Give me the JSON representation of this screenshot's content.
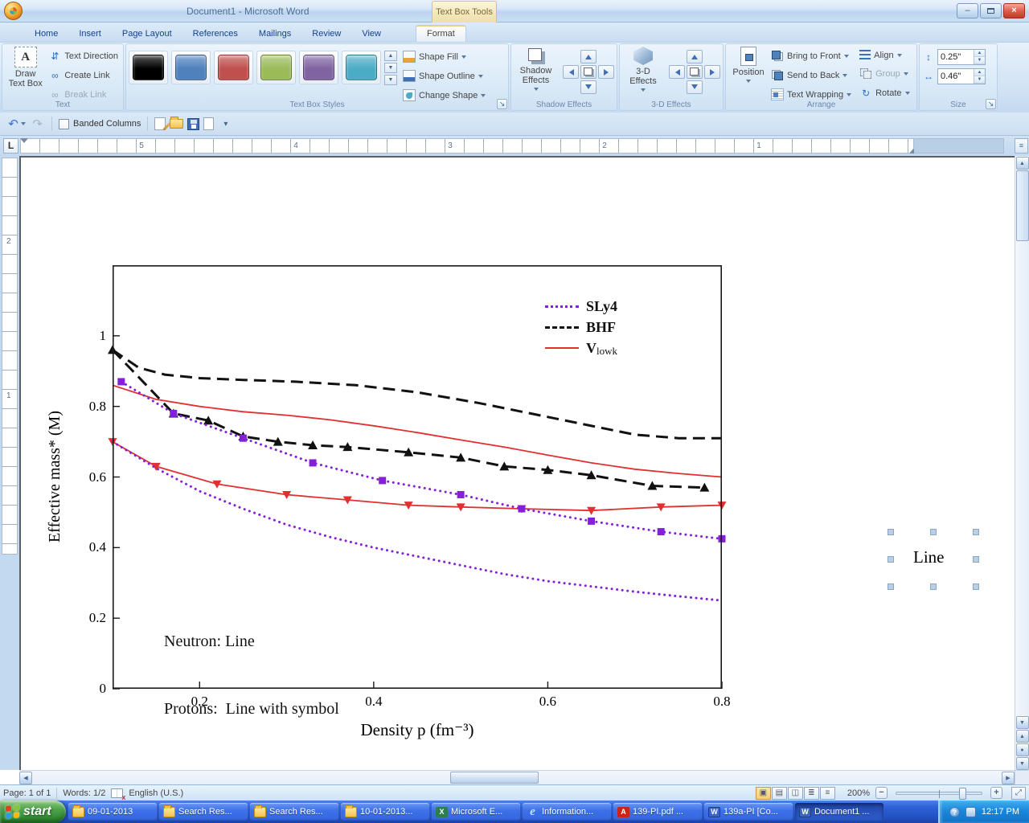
{
  "window": {
    "title": "Document1 - Microsoft Word",
    "contextual_group": "Text Box Tools"
  },
  "ribbon": {
    "tabs": [
      "Home",
      "Insert",
      "Page Layout",
      "References",
      "Mailings",
      "Review",
      "View",
      "Format"
    ],
    "active_tab": "Format",
    "text_group": {
      "label": "Text",
      "draw_text_box": "Draw Text Box",
      "text_direction": "Text Direction",
      "create_link": "Create Link",
      "break_link": "Break Link"
    },
    "styles_group": {
      "label": "Text Box Styles",
      "swatches": [
        "#000000",
        "#4f81bd",
        "#c0504d",
        "#9bbb59",
        "#8064a2",
        "#4bacc6"
      ],
      "shape_fill": "Shape Fill",
      "shape_outline": "Shape Outline",
      "change_shape": "Change Shape"
    },
    "shadow_group": {
      "label": "Shadow Effects",
      "button": "Shadow Effects"
    },
    "threed_group": {
      "label": "3-D Effects",
      "button": "3-D Effects"
    },
    "arrange_group": {
      "label": "Arrange",
      "position": "Position",
      "bring_to_front": "Bring to Front",
      "send_to_back": "Send to Back",
      "text_wrapping": "Text Wrapping",
      "align": "Align",
      "group": "Group",
      "rotate": "Rotate"
    },
    "size_group": {
      "label": "Size",
      "height": "0.25\"",
      "width": "0.46\""
    }
  },
  "quick_access": {
    "banded_columns": "Banded Columns"
  },
  "rulers": {
    "horizontal": [
      "5",
      "4",
      "3",
      "2",
      "1"
    ],
    "vertical": [
      "2",
      "1"
    ]
  },
  "document": {
    "textbox_text": "Line",
    "chart_data": {
      "type": "line",
      "title": "",
      "xlabel": "Density p (fm⁻³)",
      "ylabel": "Effective mass* (M)",
      "xlim": [
        0.1,
        0.8
      ],
      "ylim": [
        0,
        1.2
      ],
      "xticks": [
        0.2,
        0.4,
        0.6,
        0.8
      ],
      "yticks": [
        0,
        0.2,
        0.4,
        0.6,
        0.8,
        1
      ],
      "grid": false,
      "legend_position": "upper right",
      "annotations": [
        "Neutron: Line",
        "Protons:  Line with symbol"
      ],
      "legend": [
        {
          "label": "SLy4",
          "sub": "",
          "color": "#8420d8",
          "style": "dotted"
        },
        {
          "label": "BHF",
          "sub": "",
          "color": "#111111",
          "style": "dashed"
        },
        {
          "label": "V",
          "sub": "lowk",
          "color": "#e03030",
          "style": "solid"
        }
      ],
      "series": [
        {
          "name": "BHF neutron",
          "color": "#111111",
          "style": "dashed",
          "marker": "none",
          "width": 3,
          "x": [
            0.1,
            0.13,
            0.16,
            0.2,
            0.25,
            0.31,
            0.38,
            0.45,
            0.52,
            0.58,
            0.64,
            0.7,
            0.75,
            0.8
          ],
          "y": [
            0.96,
            0.91,
            0.89,
            0.88,
            0.875,
            0.87,
            0.86,
            0.84,
            0.81,
            0.78,
            0.75,
            0.72,
            0.71,
            0.71
          ]
        },
        {
          "name": "BHF protons",
          "color": "#111111",
          "style": "dashed",
          "marker": "triangle-up",
          "width": 3,
          "x": [
            0.1,
            0.17,
            0.21,
            0.25,
            0.29,
            0.33,
            0.37,
            0.44,
            0.5,
            0.55,
            0.6,
            0.65,
            0.72,
            0.78
          ],
          "y": [
            0.96,
            0.78,
            0.76,
            0.715,
            0.7,
            0.69,
            0.685,
            0.67,
            0.655,
            0.63,
            0.62,
            0.605,
            0.575,
            0.57
          ]
        },
        {
          "name": "Vlowk neutron",
          "color": "#e03030",
          "style": "solid",
          "marker": "none",
          "width": 1.8,
          "x": [
            0.1,
            0.15,
            0.2,
            0.25,
            0.3,
            0.35,
            0.4,
            0.45,
            0.5,
            0.55,
            0.6,
            0.65,
            0.7,
            0.75,
            0.8
          ],
          "y": [
            0.86,
            0.82,
            0.8,
            0.785,
            0.775,
            0.762,
            0.745,
            0.726,
            0.705,
            0.685,
            0.662,
            0.64,
            0.622,
            0.61,
            0.6
          ]
        },
        {
          "name": "Vlowk protons",
          "color": "#e03030",
          "style": "solid",
          "marker": "triangle-down",
          "width": 1.8,
          "x": [
            0.1,
            0.15,
            0.22,
            0.3,
            0.37,
            0.44,
            0.5,
            0.57,
            0.65,
            0.73,
            0.8
          ],
          "y": [
            0.7,
            0.63,
            0.58,
            0.55,
            0.535,
            0.52,
            0.515,
            0.51,
            0.505,
            0.515,
            0.52
          ]
        },
        {
          "name": "SLy4 neutron",
          "color": "#8420d8",
          "style": "dotted",
          "marker": "none",
          "width": 3,
          "x": [
            0.1,
            0.15,
            0.2,
            0.25,
            0.3,
            0.35,
            0.4,
            0.45,
            0.5,
            0.55,
            0.6,
            0.65,
            0.7,
            0.75,
            0.8
          ],
          "y": [
            0.7,
            0.625,
            0.56,
            0.51,
            0.465,
            0.43,
            0.4,
            0.375,
            0.35,
            0.325,
            0.305,
            0.29,
            0.275,
            0.262,
            0.25
          ]
        },
        {
          "name": "SLy4 protons",
          "color": "#8420d8",
          "style": "dotted",
          "marker": "square",
          "width": 3,
          "x": [
            0.11,
            0.17,
            0.25,
            0.33,
            0.41,
            0.5,
            0.57,
            0.65,
            0.73,
            0.8
          ],
          "y": [
            0.87,
            0.78,
            0.71,
            0.64,
            0.59,
            0.55,
            0.51,
            0.475,
            0.445,
            0.425
          ]
        }
      ]
    }
  },
  "status_bar": {
    "page": "Page: 1 of 1",
    "words": "Words: 1/2",
    "language": "English (U.S.)",
    "zoom": "200%"
  },
  "taskbar": {
    "start": "start",
    "clock": "12:17 PM",
    "buttons": [
      {
        "label": "09-01-2013",
        "icon": "folder",
        "active": false
      },
      {
        "label": "Search Res...",
        "icon": "folder",
        "active": false
      },
      {
        "label": "Search Res...",
        "icon": "folder",
        "active": false
      },
      {
        "label": "10-01-2013...",
        "icon": "folder",
        "active": false
      },
      {
        "label": "Microsoft E...",
        "icon": "excel",
        "active": false
      },
      {
        "label": "Information...",
        "icon": "ie",
        "active": false
      },
      {
        "label": "139-PI.pdf ...",
        "icon": "pdf",
        "active": false
      },
      {
        "label": "139a-PI [Co...",
        "icon": "word",
        "active": false
      },
      {
        "label": "Document1 ...",
        "icon": "word",
        "active": true
      }
    ]
  }
}
